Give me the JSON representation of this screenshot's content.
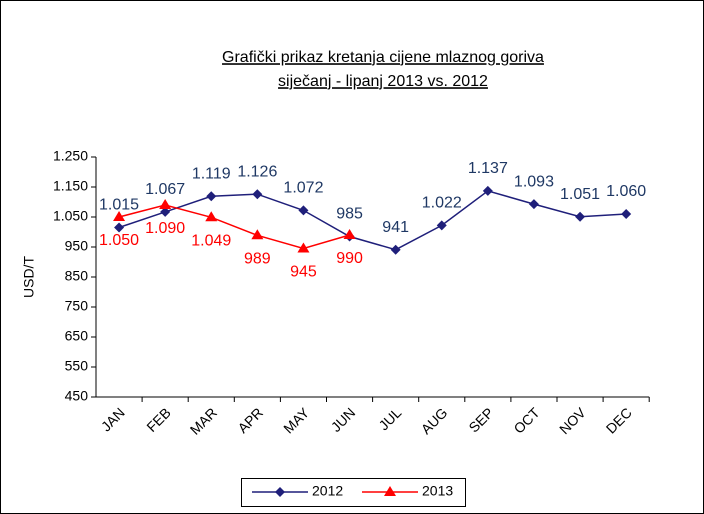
{
  "chart_data": {
    "type": "line",
    "title": [
      "Grafički prikaz kretanja cijene mlaznog goriva",
      "siječanj - lipanj 2013 vs. 2012"
    ],
    "y_label": "USD/T",
    "categories": [
      "JAN",
      "FEB",
      "MAR",
      "APR",
      "MAY",
      "JUN",
      "JUL",
      "AUG",
      "SEP",
      "OCT",
      "NOV",
      "DEC"
    ],
    "series": [
      {
        "name": "2012",
        "color": "#1f1f7a",
        "marker": "diamond",
        "values": [
          1015,
          1067,
          1119,
          1126,
          1072,
          985,
          941,
          1022,
          1137,
          1093,
          1051,
          1060
        ],
        "value_labels": [
          "1.015",
          "1.067",
          "1.119",
          "1.126",
          "1.072",
          "985",
          "941",
          "1.022",
          "1.137",
          "1.093",
          "1.051",
          "1.060"
        ]
      },
      {
        "name": "2013",
        "color": "#ff0000",
        "marker": "triangle",
        "values": [
          1050,
          1090,
          1049,
          989,
          945,
          990,
          null,
          null,
          null,
          null,
          null,
          null
        ],
        "value_labels": [
          "1.050",
          "1.090",
          "1.049",
          "989",
          "945",
          "990",
          null,
          null,
          null,
          null,
          null,
          null
        ]
      }
    ],
    "ylim": [
      450,
      1250
    ],
    "yticks": [
      450,
      550,
      650,
      750,
      850,
      950,
      {
        "value": 1050,
        "label": "1.050"
      },
      {
        "value": 1150,
        "label": "1.150"
      },
      {
        "value": 1250,
        "label": "1.250"
      }
    ],
    "legend": "bottom"
  }
}
